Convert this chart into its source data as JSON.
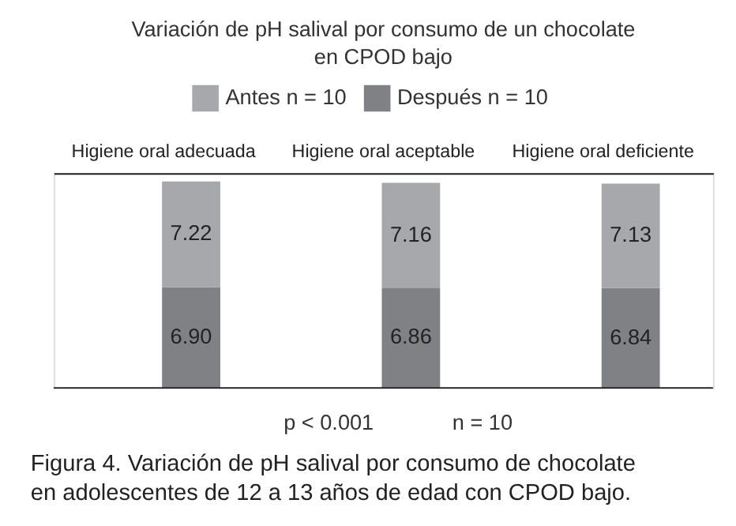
{
  "chart_data": {
    "type": "bar",
    "stacked": true,
    "legend": "top",
    "title": "Variación de pH salival por consumo de un chocolate\nen  CPOD bajo",
    "categories": [
      "Higiene oral adecuada",
      "Higiene oral aceptable",
      "Higiene oral deficiente"
    ],
    "series": [
      {
        "name": "Después n = 10",
        "color": "#808184",
        "values": [
          6.9,
          6.86,
          6.84
        ],
        "value_labels": [
          "6.90",
          "6.86",
          "6.84"
        ]
      },
      {
        "name": "Antes n = 10",
        "color": "#a7a8ab",
        "values": [
          7.22,
          7.16,
          7.13
        ],
        "value_labels": [
          "7.22",
          "7.16",
          "7.13"
        ]
      }
    ],
    "annotations": [
      "p < 0.001",
      "n = 10",
      "Figura 4. Variación de pH salival por consumo de chocolate\nen adolescentes de 12 a 13 años de edad con CPOD bajo."
    ]
  }
}
